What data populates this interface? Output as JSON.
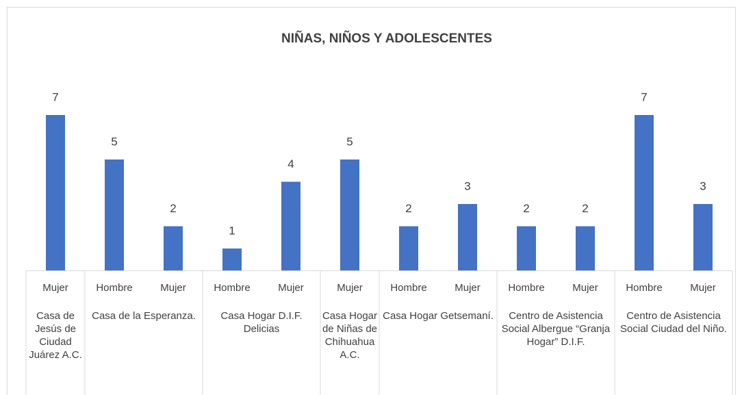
{
  "chart_data": {
    "type": "bar",
    "title": "NIÑAS, NIÑOS Y ADOLESCENTES",
    "color": "#4472c4",
    "ylim": [
      0,
      8
    ],
    "groups": [
      {
        "name": "Casa de Jesús de Ciudad Juárez A.C.",
        "categories": [
          "Mujer"
        ],
        "values": [
          7
        ]
      },
      {
        "name": "Casa de la Esperanza.",
        "categories": [
          "Hombre",
          "Mujer"
        ],
        "values": [
          5,
          2
        ]
      },
      {
        "name": "Casa Hogar D.I.F. Delicias",
        "categories": [
          "Hombre",
          "Mujer"
        ],
        "values": [
          1,
          4
        ]
      },
      {
        "name": "Casa Hogar de Niñas de Chihuahua A.C.",
        "categories": [
          "Mujer"
        ],
        "values": [
          5
        ]
      },
      {
        "name": "Casa Hogar Getsemaní.",
        "categories": [
          "Hombre",
          "Mujer"
        ],
        "values": [
          2,
          3
        ]
      },
      {
        "name": "Centro de Asistencia Social Albergue “Granja Hogar” D.I.F.",
        "categories": [
          "Hombre",
          "Mujer"
        ],
        "values": [
          2,
          2
        ]
      },
      {
        "name": "Centro de Asistencia Social Ciudad del Niño.",
        "categories": [
          "Hombre",
          "Mujer"
        ],
        "values": [
          7,
          3
        ]
      }
    ]
  }
}
